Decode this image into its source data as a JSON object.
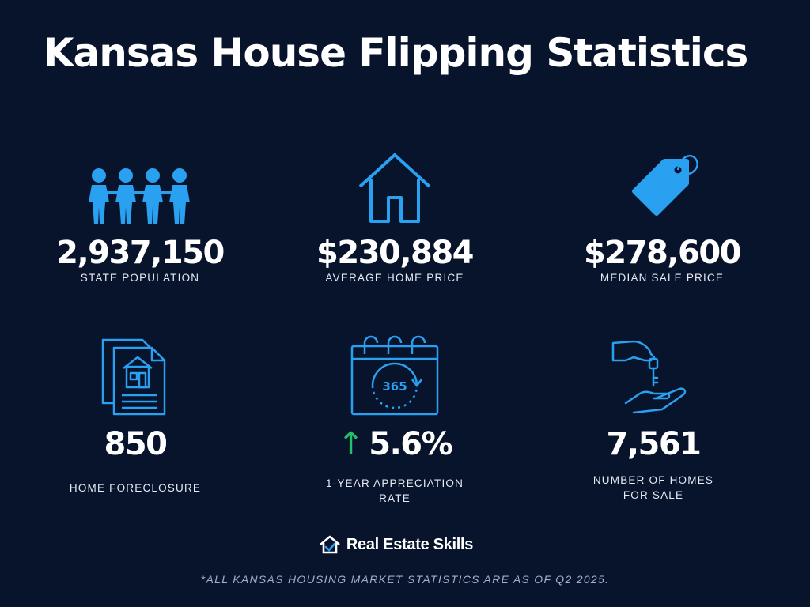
{
  "title": "Kansas House Flipping Statistics",
  "colors": {
    "background": "#08132c",
    "icon_blue": "#2aa0f0",
    "arrow_green": "#1fc46a"
  },
  "stats": [
    {
      "icon": "people-icon",
      "value": "2,937,150",
      "label": "STATE POPULATION"
    },
    {
      "icon": "house-icon",
      "value": "$230,884",
      "label": "AVERAGE HOME PRICE"
    },
    {
      "icon": "price-tag-icon",
      "value": "$278,600",
      "label": "MEDIAN SALE PRICE"
    },
    {
      "icon": "foreclosure-document-icon",
      "value": "850",
      "label": "HOME FORECLOSURE"
    },
    {
      "icon": "calendar-365-icon",
      "arrow": "↑",
      "value": "5.6%",
      "label_line1": "1-YEAR APPRECIATION",
      "label_line2": "RATE"
    },
    {
      "icon": "hand-keys-icon",
      "value": "7,561",
      "label_line1": "NUMBER OF HOMES",
      "label_line2": "FOR SALE"
    }
  ],
  "brand": {
    "icon": "house-check-logo-icon",
    "name": "Real Estate Skills"
  },
  "footnote": "*ALL KANSAS HOUSING MARKET STATISTICS ARE AS OF Q2 2025."
}
